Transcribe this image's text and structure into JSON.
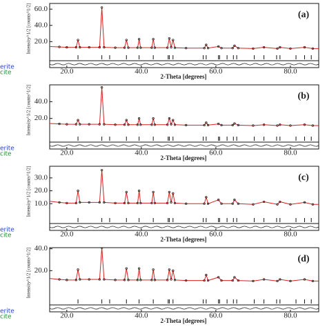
{
  "chart_data": [
    {
      "type": "line",
      "label": "(a)",
      "x_label": "2-Theta [degrees]",
      "y_label": "Intensity^1/2 [counts^1/2]",
      "legend": [
        {
          "name": "erite",
          "color": "#2340c8"
        },
        {
          "name": "cite",
          "color": "#1e8a2e"
        }
      ],
      "x": [
        15,
        18,
        20,
        22.5,
        23,
        23.5,
        26,
        28.8,
        29.4,
        30,
        33,
        35.5,
        36,
        36.5,
        39,
        39.4,
        39.8,
        42.8,
        43.2,
        43.6,
        47,
        47.5,
        48,
        48.5,
        49,
        52,
        56.9,
        57.4,
        57.9,
        60.7,
        61.5,
        64.5,
        65,
        66,
        70,
        72.9,
        76.5,
        77.2,
        80,
        83.8,
        86,
        88
      ],
      "series": [
        {
          "color": "#d62020",
          "marker_color": "#111",
          "values": [
            14,
            13.5,
            13,
            13,
            22,
            13,
            13,
            13,
            62,
            13,
            12.5,
            12.5,
            22,
            12.5,
            12.5,
            23,
            12.5,
            12.5,
            23,
            12.5,
            12.5,
            24,
            13,
            22,
            12.5,
            12,
            12,
            16,
            12,
            14,
            12,
            12,
            15,
            12,
            11.5,
            13,
            11.5,
            13,
            11.5,
            13,
            11.5,
            11.5
          ]
        }
      ],
      "reflections": [
        23,
        29.4,
        31.5,
        36,
        39.4,
        43.2,
        47.2,
        47.5,
        48.5,
        56.6,
        57.4,
        60.7,
        61,
        63,
        64.7,
        65.6,
        70.3,
        72.9,
        76.3,
        77.2,
        81.5,
        83.8,
        85.6
      ],
      "xlim": [
        15.4,
        87.6
      ],
      "ylim": [
        5,
        67
      ],
      "xticks": [
        {
          "value": 20,
          "label": "20.0"
        },
        {
          "value": 40,
          "label": "40.0"
        },
        {
          "value": 60,
          "label": "60.0"
        },
        {
          "value": 80,
          "label": "80.0"
        }
      ],
      "yticks": [
        {
          "value": 20,
          "label": "20.0"
        },
        {
          "value": 40,
          "label": "40.0"
        },
        {
          "value": 60,
          "label": "60.0"
        }
      ]
    },
    {
      "type": "line",
      "label": "(b)",
      "x_label": "2-Theta [degrees]",
      "y_label": "Intensity^1/2 [counts^1/2]",
      "legend": [
        {
          "name": "erite",
          "color": "#2340c8"
        },
        {
          "name": "cite",
          "color": "#1e8a2e"
        }
      ],
      "x": [
        15,
        18,
        20,
        22.5,
        23,
        23.5,
        26,
        28.8,
        29.4,
        30,
        33,
        35.5,
        36,
        36.5,
        39,
        39.4,
        39.8,
        42.8,
        43.2,
        43.6,
        47,
        47.5,
        48,
        48.5,
        49,
        52,
        56.9,
        57.4,
        57.9,
        60.7,
        61.5,
        64.5,
        65,
        66,
        70,
        72.9,
        76.5,
        77.2,
        80,
        83.8,
        86,
        88
      ],
      "series": [
        {
          "color": "#d62020",
          "marker_color": "#111",
          "values": [
            14,
            13.5,
            13,
            13,
            18,
            13,
            13,
            13,
            57,
            13,
            12.5,
            12.5,
            18,
            12.5,
            12.5,
            20,
            12.5,
            12.5,
            20,
            12.5,
            12.5,
            20,
            13,
            18,
            12.5,
            12,
            12,
            15,
            12,
            13.5,
            12,
            12,
            14,
            12,
            11.5,
            12.5,
            11.5,
            12.5,
            11.5,
            12.5,
            11.5,
            11.5
          ]
        }
      ],
      "reflections": [
        23,
        29.4,
        31.5,
        36,
        39.4,
        43.2,
        47.2,
        47.5,
        48.5,
        56.6,
        57.4,
        60.7,
        61,
        63,
        64.7,
        65.6,
        70.3,
        72.9,
        76.3,
        77.2,
        81.5,
        83.8,
        85.6
      ],
      "xlim": [
        15.4,
        87.6
      ],
      "ylim": [
        0,
        60
      ],
      "xticks": [
        {
          "value": 20,
          "label": "20.0"
        },
        {
          "value": 40,
          "label": "40.0"
        },
        {
          "value": 60,
          "label": "60.0"
        },
        {
          "value": 80,
          "label": "80.0"
        }
      ],
      "yticks": [
        {
          "value": 20,
          "label": "20.0"
        },
        {
          "value": 40,
          "label": "40.0"
        }
      ]
    },
    {
      "type": "line",
      "label": "(c)",
      "x_label": "2-Theta [degrees]",
      "y_label": "Intensity^1/2 [counts^1/2]",
      "legend": [
        {
          "name": "erite",
          "color": "#2340c8"
        },
        {
          "name": "cite",
          "color": "#1e8a2e"
        }
      ],
      "x": [
        15,
        18,
        20,
        22.5,
        23,
        23.5,
        26,
        28.8,
        29.4,
        30,
        33,
        35.5,
        36,
        36.5,
        39,
        39.4,
        39.8,
        42.8,
        43.2,
        43.6,
        47,
        47.5,
        48,
        48.5,
        49,
        52,
        56.9,
        57.4,
        57.9,
        60.7,
        61.5,
        64.5,
        65,
        66,
        70,
        72.9,
        76.5,
        77.2,
        80,
        83.8,
        86,
        88
      ],
      "series": [
        {
          "color": "#d62020",
          "marker_color": "#111",
          "values": [
            12,
            11,
            10.5,
            10.5,
            20,
            11,
            11,
            11,
            36,
            11,
            10.5,
            10.5,
            19,
            10.5,
            10.5,
            20,
            10.5,
            10.5,
            19,
            10.5,
            10.5,
            19,
            11,
            18,
            10.5,
            10,
            10,
            15,
            10,
            13,
            10,
            10,
            13,
            10,
            9.5,
            11.5,
            9.5,
            11.5,
            9.5,
            11,
            9.5,
            9.5
          ]
        }
      ],
      "reflections": [
        23,
        29.4,
        31.5,
        36,
        39.4,
        43.2,
        47.2,
        47.5,
        48.5,
        56.6,
        57.4,
        60.7,
        61,
        63,
        64.7,
        65.6,
        70.3,
        72.9,
        76.3,
        77.2,
        81.5,
        83.8,
        85.6
      ],
      "xlim": [
        15.4,
        87.6
      ],
      "ylim": [
        0,
        39
      ],
      "xticks": [
        {
          "value": 20,
          "label": "20.0"
        },
        {
          "value": 40,
          "label": "40.0"
        },
        {
          "value": 60,
          "label": "60.0"
        },
        {
          "value": 80,
          "label": "80.0"
        }
      ],
      "yticks": [
        {
          "value": 10,
          "label": "10.0"
        },
        {
          "value": 20,
          "label": "20.0"
        },
        {
          "value": 30,
          "label": "30.0"
        }
      ]
    },
    {
      "type": "line",
      "label": "(d)",
      "x_label": "2-Theta [degrees]",
      "y_label": "Intensity^1/2 [counts^1/2]",
      "legend": [
        {
          "name": "erite",
          "color": "#2340c8"
        },
        {
          "name": "cite",
          "color": "#1e8a2e"
        }
      ],
      "x": [
        15,
        18,
        20,
        22.5,
        23,
        23.5,
        26,
        28.8,
        29.4,
        30,
        33,
        35.5,
        36,
        36.5,
        39,
        39.4,
        39.8,
        42.8,
        43.2,
        43.6,
        47,
        47.5,
        48,
        48.5,
        49,
        52,
        56.9,
        57.4,
        57.9,
        60.7,
        61.5,
        64.5,
        65,
        66,
        70,
        72.9,
        76.5,
        77.2,
        80,
        83.8,
        86,
        88
      ],
      "series": [
        {
          "color": "#d62020",
          "marker_color": "#111",
          "values": [
            13,
            12,
            11.5,
            11.5,
            21,
            12,
            12,
            12,
            41,
            12,
            11.5,
            11.5,
            22,
            11.5,
            11.5,
            22,
            11.5,
            11.5,
            21,
            11.5,
            11.5,
            21,
            12,
            20,
            11.5,
            11,
            11,
            16,
            11,
            14,
            11,
            11,
            14,
            11,
            10.5,
            12,
            10.5,
            12,
            10.5,
            12,
            10.5,
            10.5
          ]
        }
      ],
      "reflections": [
        23,
        29.4,
        31.5,
        36,
        39.4,
        43.2,
        47.2,
        47.5,
        48.5,
        56.6,
        57.4,
        60.7,
        61,
        63,
        64.7,
        65.6,
        70.3,
        72.9,
        76.3,
        77.2,
        81.5,
        83.8,
        85.6
      ],
      "xlim": [
        15.4,
        87.6
      ],
      "ylim": [
        -5,
        41
      ],
      "xticks": [
        {
          "value": 20,
          "label": "20.0"
        },
        {
          "value": 40,
          "label": "40.0"
        },
        {
          "value": 60,
          "label": "60.0"
        },
        {
          "value": 80,
          "label": "80.0"
        }
      ],
      "yticks": [
        {
          "value": 20,
          "label": "20.0"
        },
        {
          "value": 40,
          "label": "40.0"
        }
      ]
    }
  ]
}
